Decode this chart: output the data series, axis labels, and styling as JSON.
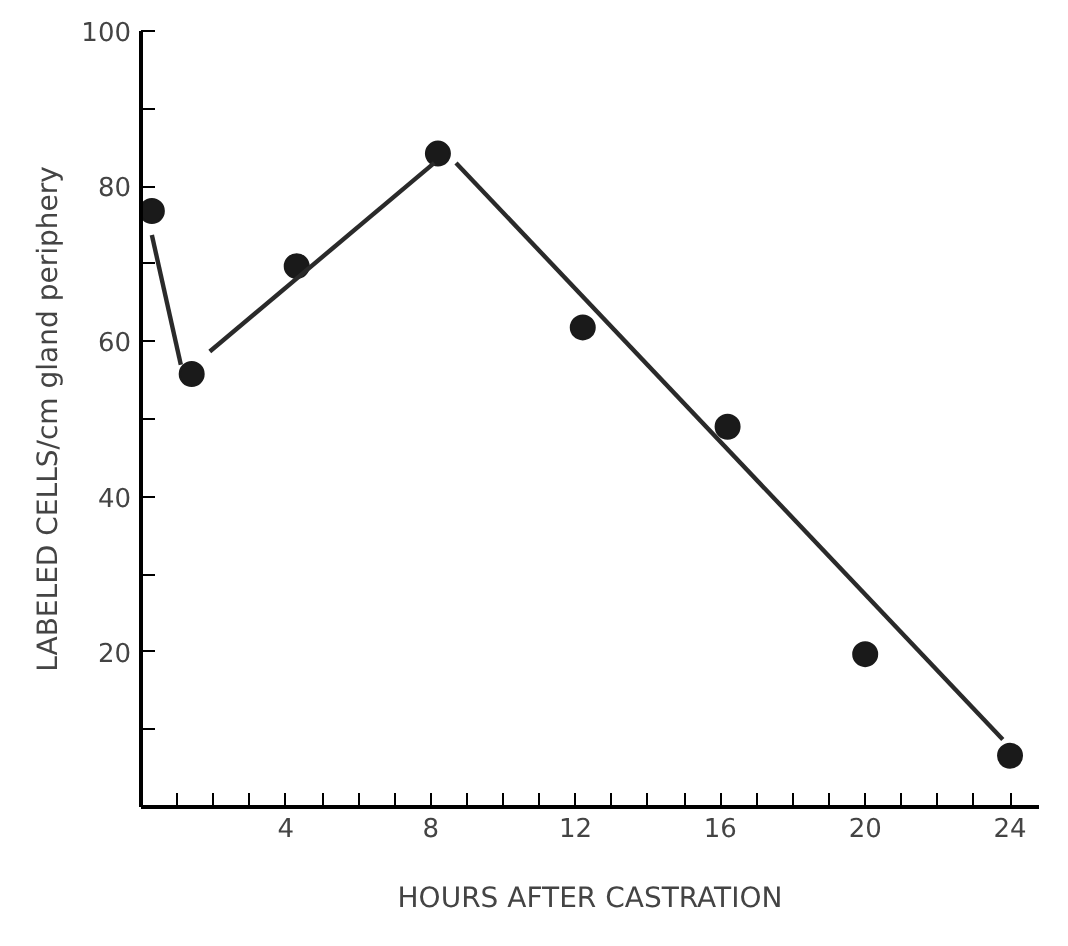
{
  "chart_data": {
    "type": "scatter",
    "xlabel": "HOURS AFTER CASTRATION",
    "ylabel": "LABELED CELLS/cm gland periphery",
    "x": [
      0.3,
      1.4,
      4.3,
      8.2,
      12.2,
      16.2,
      20,
      24
    ],
    "series": [
      {
        "color": "#1a1a1a",
        "marker": "circle",
        "values": [
          76.8,
          55.8,
          69.7,
          84.2,
          61.8,
          49,
          19.7,
          6.6
        ]
      },
      {
        "type": "line",
        "color": "#2a2a2a",
        "marker": "none",
        "line_style": "solid",
        "x": [
          0.3,
          1.1,
          1.5,
          1.9,
          8.1,
          8.4,
          8.7,
          23.8
        ],
        "values": [
          73.7,
          57,
          null,
          58.7,
          83,
          null,
          83,
          8.7
        ]
      }
    ],
    "xlim": [
      0,
      24.8
    ],
    "ylim": [
      0,
      100
    ],
    "xticks": [
      {
        "value": 1,
        "label": null
      },
      {
        "value": 2,
        "label": null
      },
      {
        "value": 3,
        "label": null
      },
      4,
      {
        "value": 5,
        "label": null
      },
      {
        "value": 6,
        "label": null
      },
      {
        "value": 7,
        "label": null
      },
      8,
      {
        "value": 9,
        "label": null
      },
      {
        "value": 10,
        "label": null
      },
      {
        "value": 11,
        "label": null
      },
      12,
      {
        "value": 13,
        "label": null
      },
      {
        "value": 14,
        "label": null
      },
      {
        "value": 15,
        "label": null
      },
      16,
      {
        "value": 17,
        "label": null
      },
      {
        "value": 18,
        "label": null
      },
      {
        "value": 19,
        "label": null
      },
      20,
      {
        "value": 21,
        "label": null
      },
      {
        "value": 22,
        "label": null
      },
      {
        "value": 23,
        "label": null
      },
      24
    ],
    "yticks": [
      {
        "value": 10,
        "label": null
      },
      20,
      {
        "value": 30,
        "label": null
      },
      40,
      {
        "value": 50,
        "label": null
      },
      60,
      {
        "value": 70,
        "label": null
      },
      80,
      {
        "value": 90,
        "label": null
      },
      100
    ],
    "grid": false
  }
}
